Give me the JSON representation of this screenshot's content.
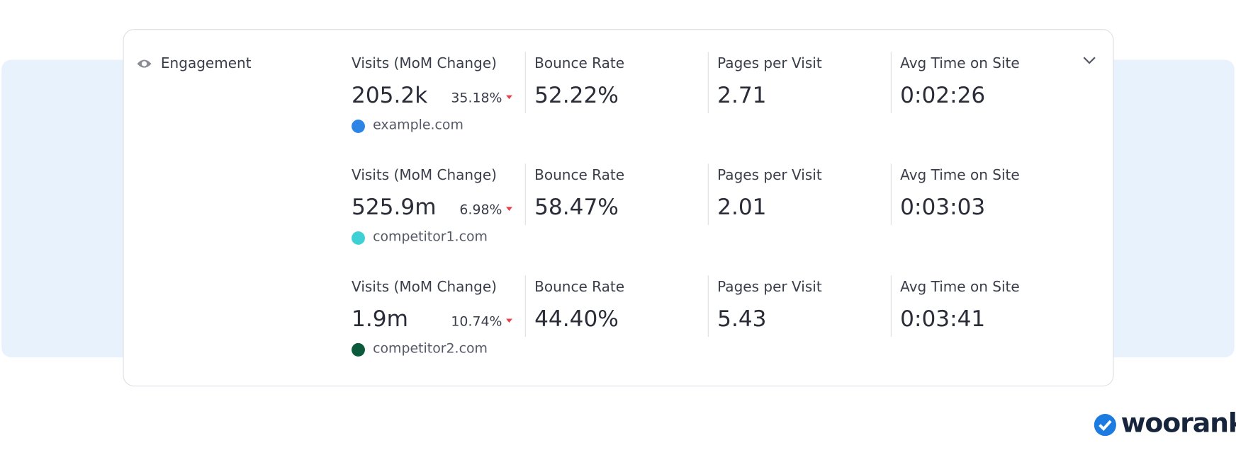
{
  "panel": {
    "title": "Engagement",
    "columns": [
      "Visits (MoM Change)",
      "Bounce Rate",
      "Pages per Visit",
      "Avg Time on Site"
    ],
    "rows": [
      {
        "site": "example.com",
        "color": "#2b84e6",
        "visits": "205.2k",
        "change": "35.18%",
        "bounce": "52.22%",
        "pages": "2.71",
        "time": "0:02:26"
      },
      {
        "site": "competitor1.com",
        "color": "#3fd0d6",
        "visits": "525.9m",
        "change": "6.98%",
        "bounce": "58.47%",
        "pages": "2.01",
        "time": "0:03:03"
      },
      {
        "site": "competitor2.com",
        "color": "#0b5a3c",
        "visits": "1.9m",
        "change": "10.74%",
        "bounce": "44.40%",
        "pages": "5.43",
        "time": "0:03:41"
      }
    ]
  },
  "brand": "woorank"
}
